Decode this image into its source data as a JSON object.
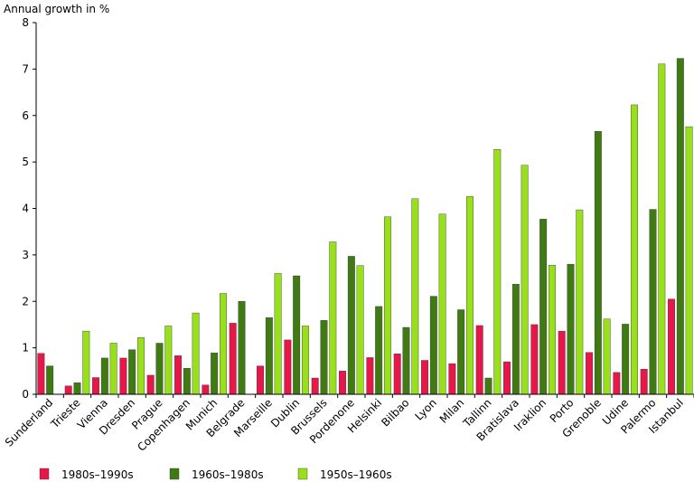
{
  "chart_data": {
    "type": "bar",
    "ylabel": "Annual growth in %",
    "ylim": [
      0,
      8
    ],
    "yticks": [
      "0",
      "1",
      "2",
      "3",
      "4",
      "5",
      "6",
      "7",
      "8"
    ],
    "grid": false,
    "legend_position": "bottom",
    "categories": [
      "Sunderland",
      "Trieste",
      "Vienna",
      "Dresden",
      "Prague",
      "Copenhagen",
      "Munich",
      "Belgrade",
      "Marseille",
      "Dublin",
      "Brussels",
      "Pordenone",
      "Helsinki",
      "Bilbao",
      "Lyon",
      "Milan",
      "Tallinn",
      "Bratislava",
      "Iraklion",
      "Porto",
      "Grenoble",
      "Udine",
      "Palermo",
      "Istanbul"
    ],
    "series": [
      {
        "name": "1980s–1990s",
        "color": "#e8174a",
        "values": [
          0.88,
          0.18,
          0.36,
          0.78,
          0.41,
          0.83,
          0.2,
          1.53,
          0.61,
          1.17,
          0.35,
          0.5,
          0.79,
          0.87,
          0.73,
          0.66,
          1.48,
          0.7,
          1.5,
          1.36,
          0.9,
          0.47,
          0.54,
          2.05
        ]
      },
      {
        "name": "1960s–1980s",
        "color": "#3f7b12",
        "values": [
          0.61,
          0.25,
          0.78,
          0.96,
          1.1,
          0.56,
          0.89,
          2.0,
          1.65,
          2.55,
          1.59,
          2.97,
          1.89,
          1.44,
          2.11,
          1.82,
          0.35,
          2.37,
          3.77,
          2.8,
          5.66,
          1.51,
          3.98,
          7.23
        ]
      },
      {
        "name": "1950s–1960s",
        "color": "#99e01c",
        "values": [
          null,
          1.36,
          1.1,
          1.22,
          1.47,
          1.75,
          2.17,
          null,
          2.6,
          1.47,
          3.28,
          2.77,
          3.82,
          4.21,
          3.88,
          4.26,
          5.27,
          4.93,
          2.78,
          3.97,
          1.62,
          6.23,
          7.11,
          5.76
        ]
      }
    ]
  }
}
